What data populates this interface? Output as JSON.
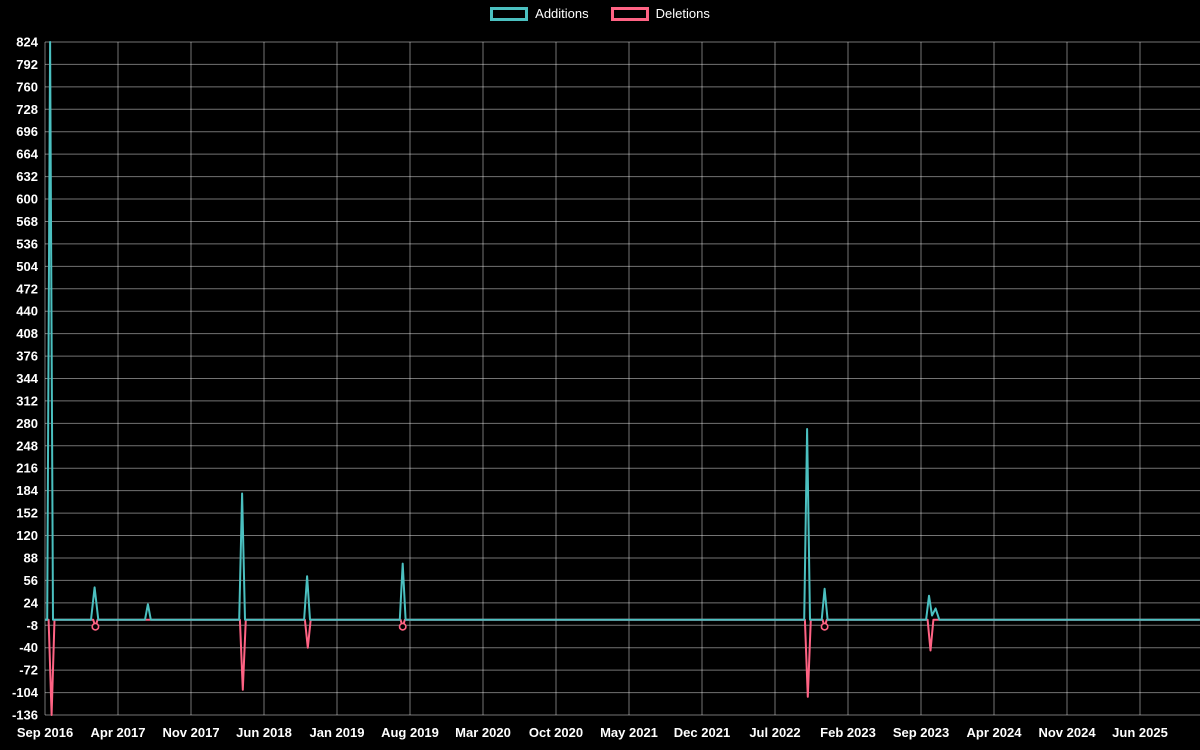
{
  "legend": {
    "additions_label": "Additions",
    "deletions_label": "Deletions"
  },
  "chart_data": {
    "type": "line",
    "title": "",
    "xlabel": "",
    "ylabel": "",
    "legend_position": "top",
    "grid": true,
    "background": "#000000",
    "grid_color": "rgba(255,255,255,0.45)",
    "text_color": "#ffffff",
    "ylim": [
      -136,
      824
    ],
    "y_tick_step": 32,
    "x_ticks": [
      "Sep 2016",
      "Apr 2017",
      "Nov 2017",
      "Jun 2018",
      "Jan 2019",
      "Aug 2019",
      "Mar 2020",
      "Oct 2020",
      "May 2021",
      "Dec 2021",
      "Jul 2022",
      "Feb 2023",
      "Sep 2023",
      "Apr 2024",
      "Nov 2024",
      "Jun 2025"
    ],
    "y_ticks": [
      824,
      792,
      760,
      728,
      696,
      664,
      632,
      600,
      568,
      536,
      504,
      472,
      440,
      408,
      376,
      344,
      312,
      280,
      248,
      216,
      184,
      152,
      120,
      88,
      56,
      24,
      -8,
      -40,
      -72,
      -104,
      -136
    ],
    "xlim_tick_units": [
      0,
      15.82
    ],
    "series": [
      {
        "name": "Additions",
        "color": "#4bc0c0",
        "points": [
          [
            0,
            0
          ],
          [
            0.03,
            0
          ],
          [
            0.07,
            824
          ],
          [
            0.11,
            0
          ],
          [
            0.63,
            0
          ],
          [
            0.68,
            46
          ],
          [
            0.73,
            0
          ],
          [
            1.37,
            0
          ],
          [
            1.41,
            22
          ],
          [
            1.45,
            0
          ],
          [
            2.66,
            0
          ],
          [
            2.7,
            180
          ],
          [
            2.74,
            0
          ],
          [
            3.55,
            0
          ],
          [
            3.59,
            62
          ],
          [
            3.63,
            0
          ],
          [
            4.86,
            0
          ],
          [
            4.9,
            80
          ],
          [
            4.94,
            0
          ],
          [
            10.4,
            0
          ],
          [
            10.44,
            272
          ],
          [
            10.48,
            0
          ],
          [
            10.64,
            0
          ],
          [
            10.68,
            44
          ],
          [
            10.72,
            0
          ],
          [
            12.07,
            0
          ],
          [
            12.11,
            34
          ],
          [
            12.15,
            6
          ],
          [
            12.2,
            16
          ],
          [
            12.25,
            0
          ],
          [
            15.82,
            0
          ]
        ],
        "markers": []
      },
      {
        "name": "Deletions",
        "color": "#ff6384",
        "points": [
          [
            0,
            0
          ],
          [
            0.05,
            0
          ],
          [
            0.09,
            -136
          ],
          [
            0.13,
            0
          ],
          [
            0.66,
            0
          ],
          [
            0.69,
            -10
          ],
          [
            0.72,
            0
          ],
          [
            2.67,
            0
          ],
          [
            2.71,
            -100
          ],
          [
            2.75,
            0
          ],
          [
            3.56,
            0
          ],
          [
            3.6,
            -40
          ],
          [
            3.64,
            0
          ],
          [
            4.87,
            0
          ],
          [
            4.9,
            -10
          ],
          [
            4.93,
            0
          ],
          [
            10.41,
            0
          ],
          [
            10.45,
            -110
          ],
          [
            10.49,
            0
          ],
          [
            10.65,
            0
          ],
          [
            10.68,
            -10
          ],
          [
            10.71,
            0
          ],
          [
            12.09,
            0
          ],
          [
            12.13,
            -44
          ],
          [
            12.17,
            0
          ],
          [
            15.82,
            0
          ]
        ],
        "markers": [
          [
            0.69,
            -10
          ],
          [
            4.9,
            -10
          ],
          [
            10.68,
            -10
          ]
        ]
      }
    ]
  }
}
